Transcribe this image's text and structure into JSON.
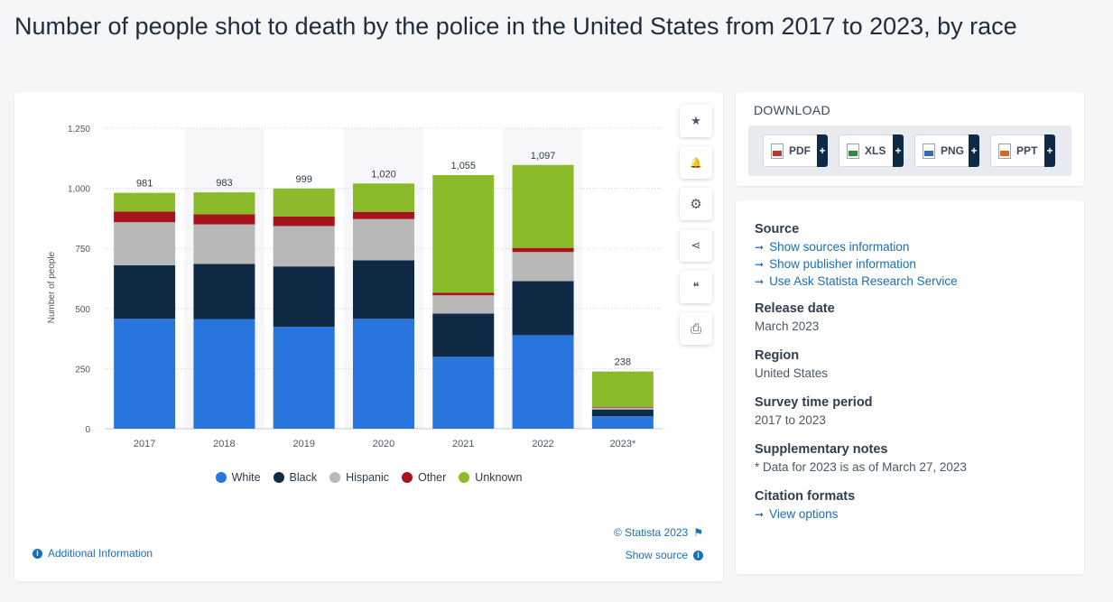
{
  "page_title": "Number of people shot to death by the police in the United States from 2017 to 2023, by race",
  "chart_data": {
    "type": "bar",
    "stacked": true,
    "title": "Number of people shot to death by the police in the United States from 2017 to 2023, by race",
    "xlabel": "",
    "ylabel": "Number of people",
    "ylim": [
      0,
      1250
    ],
    "yticks": [
      0,
      250,
      500,
      750,
      1000,
      1250
    ],
    "ytick_labels": [
      "0",
      "250",
      "500",
      "750",
      "1,000",
      "1,250"
    ],
    "grid": true,
    "legend_position": "bottom",
    "categories": [
      "2017",
      "2018",
      "2019",
      "2020",
      "2021",
      "2022",
      "2023*"
    ],
    "series": [
      {
        "name": "White",
        "color": "#2876dd",
        "values": [
          457,
          456,
          424,
          457,
          299,
          389,
          52
        ]
      },
      {
        "name": "Black",
        "color": "#0f2a44",
        "values": [
          223,
          229,
          251,
          243,
          180,
          225,
          28
        ]
      },
      {
        "name": "Hispanic",
        "color": "#b8b8b8",
        "values": [
          179,
          165,
          168,
          172,
          76,
          121,
          8
        ]
      },
      {
        "name": "Other",
        "color": "#a7141b",
        "values": [
          44,
          42,
          40,
          30,
          11,
          17,
          3
        ]
      },
      {
        "name": "Unknown",
        "color": "#8bba2a",
        "values": [
          78,
          91,
          116,
          118,
          489,
          345,
          147
        ]
      }
    ],
    "totals": [
      981,
      983,
      999,
      1020,
      1055,
      1097,
      238
    ],
    "total_labels": [
      "981",
      "983",
      "999",
      "1,020",
      "1,055",
      "1,097",
      "238"
    ]
  },
  "toolbar": [
    {
      "name": "favorite",
      "icon": "★"
    },
    {
      "name": "notification",
      "icon": "🔔"
    },
    {
      "name": "settings",
      "icon": "⚙"
    },
    {
      "name": "share",
      "icon": "⋖"
    },
    {
      "name": "citation",
      "icon": "❝"
    },
    {
      "name": "print",
      "icon": "⎙"
    }
  ],
  "credit": "© Statista 2023",
  "additional_info": "Additional Information",
  "show_source": "Show source",
  "download": {
    "title": "DOWNLOAD",
    "buttons": [
      {
        "label": "PDF",
        "color": "#c0392b"
      },
      {
        "label": "XLS",
        "color": "#2e8b3a"
      },
      {
        "label": "PNG",
        "color": "#2d6db5"
      },
      {
        "label": "PPT",
        "color": "#d2691e"
      }
    ],
    "plus": "+"
  },
  "info": {
    "source_head": "Source",
    "source_links": [
      "Show sources information",
      "Show publisher information",
      "Use Ask Statista Research Service"
    ],
    "release_head": "Release date",
    "release_val": "March 2023",
    "region_head": "Region",
    "region_val": "United States",
    "survey_head": "Survey time period",
    "survey_val": "2017 to 2023",
    "notes_head": "Supplementary notes",
    "notes_val": "* Data for 2023 is as of March 27, 2023",
    "citation_head": "Citation formats",
    "citation_link": "View options"
  }
}
